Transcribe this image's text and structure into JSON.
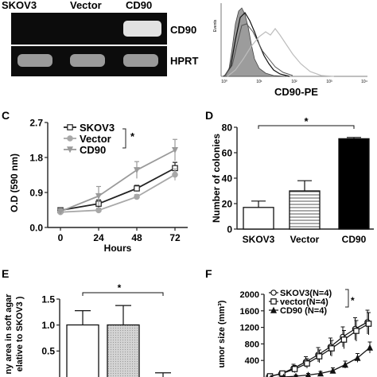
{
  "gel": {
    "lane_labels": [
      "SKOV3",
      "Vector",
      "CD90"
    ],
    "row_labels": [
      "CD90",
      "HPRT"
    ]
  },
  "flow": {
    "ylabel": "Events",
    "xticks": [
      "10⁰",
      "10¹",
      "10²",
      "10³",
      "10⁴"
    ],
    "xlabel": "CD90-PE"
  },
  "colors": {
    "skov3": "#222222",
    "vector": "#a8a8a8",
    "cd90": "#9a9a9a",
    "bar_cd90": "#000000",
    "flow_fill": "#9c9c9c"
  },
  "chart_data": [
    {
      "panel": "C",
      "type": "line",
      "xlabel": "Hours",
      "ylabel": "O.D (590 nm)",
      "x": [
        0,
        24,
        48,
        72
      ],
      "xticks": [
        "0",
        "24",
        "48",
        "72"
      ],
      "yticks": [
        "0.0",
        "0.9",
        "1.8",
        "2.7"
      ],
      "ylim": [
        0,
        2.7
      ],
      "significance": "*",
      "legend": "top-left",
      "series": [
        {
          "name": "SKOV3",
          "marker": "square",
          "values": [
            0.45,
            0.62,
            1.02,
            1.55
          ],
          "errors": [
            0.06,
            0.1,
            0.08,
            0.15
          ]
        },
        {
          "name": "Vector",
          "marker": "circle",
          "values": [
            0.4,
            0.45,
            0.8,
            1.38
          ],
          "errors": [
            0.05,
            0.06,
            0.06,
            0.15
          ]
        },
        {
          "name": "CD90",
          "marker": "triangle-down",
          "values": [
            0.42,
            0.82,
            1.5,
            2.02
          ],
          "errors": [
            0.06,
            0.25,
            0.22,
            0.28
          ]
        }
      ]
    },
    {
      "panel": "D",
      "type": "bar",
      "ylabel": "Number of colonies",
      "categories": [
        "SKOV3",
        "Vector",
        "CD90"
      ],
      "values": [
        17,
        30,
        71
      ],
      "errors": [
        5,
        8,
        1
      ],
      "yticks": [
        "0",
        "20",
        "40",
        "60",
        "80"
      ],
      "ylim": [
        0,
        80
      ],
      "significance": "*"
    },
    {
      "panel": "E",
      "type": "bar",
      "ylabel_lines": [
        "ny area in soft agar",
        "elative to SKOV3 )"
      ],
      "values": [
        1.1,
        1.1,
        0.28
      ],
      "errors": [
        0.22,
        0.3,
        0.08
      ],
      "yticks": [
        "0.5",
        "1.0",
        "1.5"
      ],
      "ylim": [
        0,
        1.5
      ],
      "significance": "*"
    },
    {
      "panel": "F",
      "type": "line",
      "ylabel": "umor size (mm³)",
      "yticks": [
        "400",
        "800",
        "1200",
        "1600",
        "2000"
      ],
      "ylim": [
        0,
        2000
      ],
      "significance": "*",
      "series": [
        {
          "name": "SKOV3(N=4)",
          "marker": "circle",
          "values": [
            50,
            120,
            260,
            420,
            600,
            800,
            1050,
            1250,
            1420
          ],
          "errors": [
            40,
            60,
            100,
            130,
            180,
            220,
            250,
            280,
            300
          ]
        },
        {
          "name": "vector(N=4)",
          "marker": "square",
          "values": [
            60,
            130,
            240,
            380,
            560,
            760,
            980,
            1200,
            1380
          ],
          "errors": [
            40,
            60,
            90,
            120,
            160,
            200,
            230,
            260,
            280
          ]
        },
        {
          "name": "CD90 (N=4)",
          "marker": "triangle",
          "values": [
            20,
            40,
            60,
            90,
            130,
            200,
            350,
            520,
            780
          ],
          "errors": [
            20,
            20,
            30,
            40,
            50,
            70,
            90,
            110,
            140
          ]
        }
      ]
    }
  ],
  "panel_labels": {
    "C": "C",
    "D": "D",
    "E": "E",
    "F": "F"
  }
}
